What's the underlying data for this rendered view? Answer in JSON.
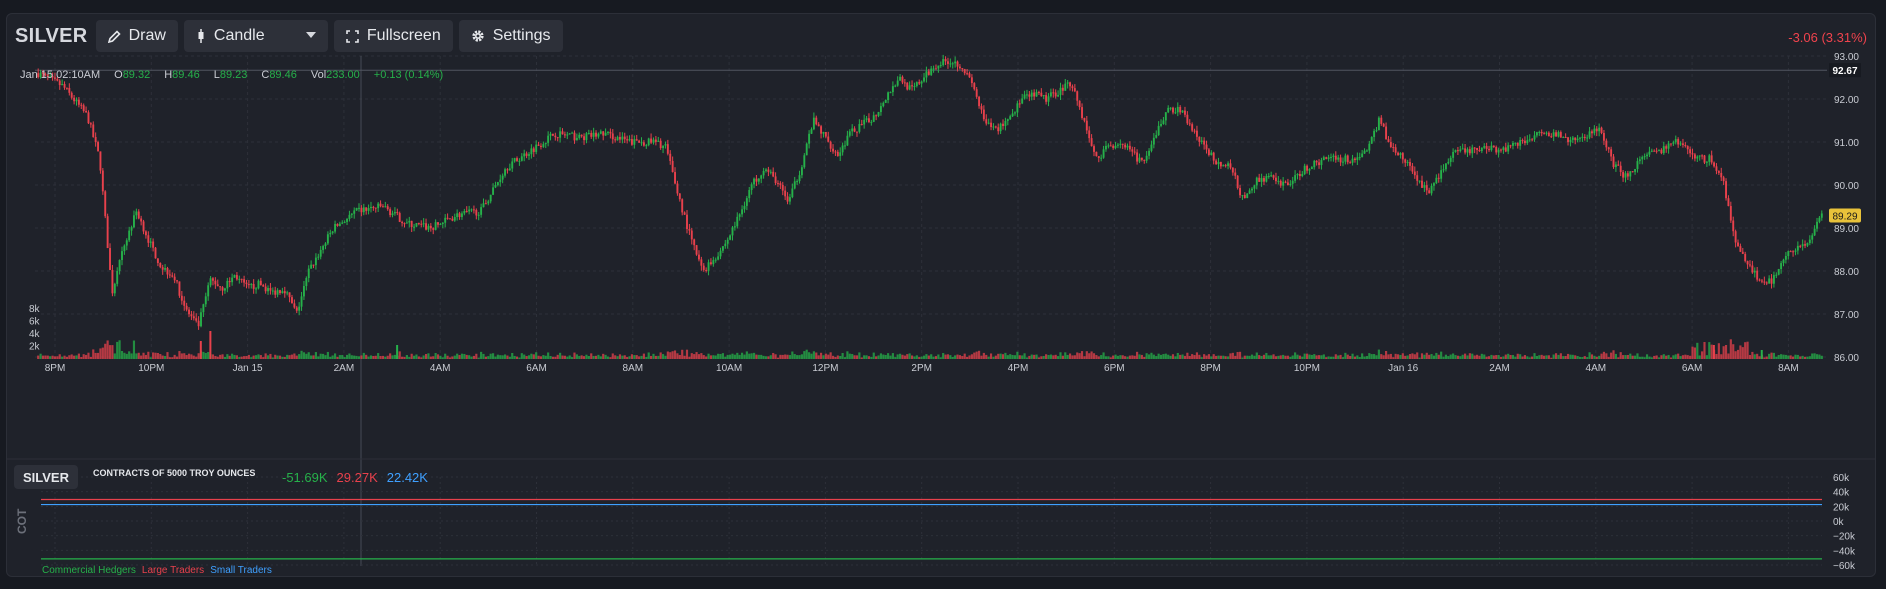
{
  "toolbar": {
    "symbol": "SILVER",
    "draw_label": "Draw",
    "chart_type_label": "Candle",
    "fullscreen_label": "Fullscreen",
    "settings_label": "Settings"
  },
  "change": "-3.06 (3.31%)",
  "ohlc": {
    "time": "Jan 15 02:10AM",
    "o_label": "O",
    "o": "89.32",
    "h_label": "H",
    "h": "89.46",
    "l_label": "L",
    "l": "89.23",
    "c_label": "C",
    "c": "89.46",
    "vol_label": "Vol",
    "vol": "233.00",
    "chg": "+0.13 (0.14%)"
  },
  "colors": {
    "up": "#26b14a",
    "down": "#e8414c",
    "small": "#3fa0ff",
    "bg": "#1f222a",
    "grid": "#2d3039"
  },
  "chart_data": [
    {
      "type": "candlestick",
      "y_ticks": [
        "93.00",
        "92.00",
        "91.00",
        "90.00",
        "89.00",
        "88.00",
        "87.00",
        "86.00"
      ],
      "ylim": [
        86.0,
        93.0
      ],
      "x_ticks": [
        "8PM",
        "10PM",
        "Jan 15",
        "2AM",
        "4AM",
        "6AM",
        "8AM",
        "10AM",
        "12PM",
        "2PM",
        "4PM",
        "6PM",
        "8PM",
        "10PM",
        "Jan 16",
        "2AM",
        "4AM",
        "6AM",
        "8AM"
      ],
      "price_path": [
        [
          0,
          92.6
        ],
        [
          2,
          92.3
        ],
        [
          4,
          91.6
        ],
        [
          5,
          90.6
        ],
        [
          6,
          87.5
        ],
        [
          7,
          88.6
        ],
        [
          8,
          89.4
        ],
        [
          9,
          88.7
        ],
        [
          10,
          88.1
        ],
        [
          11,
          87.9
        ],
        [
          12,
          87.1
        ],
        [
          13,
          86.7
        ],
        [
          14,
          87.8
        ],
        [
          15,
          87.6
        ],
        [
          16,
          87.9
        ],
        [
          17,
          87.6
        ],
        [
          18,
          87.7
        ],
        [
          19,
          87.5
        ],
        [
          20,
          87.6
        ],
        [
          21,
          87.0
        ],
        [
          22,
          88.0
        ],
        [
          24,
          89.0
        ],
        [
          26,
          89.4
        ],
        [
          28,
          89.5
        ],
        [
          30,
          89.1
        ],
        [
          32,
          89.0
        ],
        [
          34,
          89.3
        ],
        [
          36,
          89.4
        ],
        [
          38,
          90.4
        ],
        [
          40,
          90.8
        ],
        [
          42,
          91.2
        ],
        [
          44,
          91.1
        ],
        [
          46,
          91.2
        ],
        [
          48,
          91.0
        ],
        [
          50,
          91.0
        ],
        [
          51,
          90.9
        ],
        [
          52,
          89.8
        ],
        [
          53,
          88.8
        ],
        [
          54,
          88.0
        ],
        [
          55,
          88.3
        ],
        [
          56,
          88.7
        ],
        [
          57,
          89.3
        ],
        [
          58,
          90.0
        ],
        [
          59,
          90.4
        ],
        [
          60,
          90.1
        ],
        [
          61,
          89.6
        ],
        [
          62,
          90.4
        ],
        [
          63,
          91.5
        ],
        [
          64,
          91.1
        ],
        [
          65,
          90.7
        ],
        [
          66,
          91.2
        ],
        [
          67,
          91.4
        ],
        [
          68,
          91.6
        ],
        [
          69,
          92.1
        ],
        [
          70,
          92.5
        ],
        [
          71,
          92.2
        ],
        [
          72,
          92.5
        ],
        [
          73,
          92.8
        ],
        [
          74,
          92.9
        ],
        [
          75,
          92.8
        ],
        [
          76,
          92.3
        ],
        [
          77,
          91.4
        ],
        [
          78,
          91.3
        ],
        [
          79,
          91.6
        ],
        [
          80,
          92.0
        ],
        [
          81,
          92.1
        ],
        [
          82,
          92.0
        ],
        [
          83,
          92.2
        ],
        [
          84,
          92.4
        ],
        [
          85,
          91.5
        ],
        [
          86,
          90.6
        ],
        [
          87,
          90.9
        ],
        [
          88,
          91.0
        ],
        [
          89,
          90.7
        ],
        [
          90,
          90.5
        ],
        [
          91,
          91.3
        ],
        [
          92,
          91.8
        ],
        [
          93,
          91.7
        ],
        [
          94,
          91.2
        ],
        [
          95,
          90.8
        ],
        [
          96,
          90.5
        ],
        [
          97,
          90.4
        ],
        [
          98,
          89.6
        ],
        [
          99,
          90.1
        ],
        [
          100,
          90.2
        ],
        [
          101,
          90.0
        ],
        [
          102,
          90.1
        ],
        [
          103,
          90.4
        ],
        [
          104,
          90.5
        ],
        [
          105,
          90.7
        ],
        [
          106,
          90.6
        ],
        [
          107,
          90.6
        ],
        [
          108,
          90.8
        ],
        [
          109,
          91.5
        ],
        [
          110,
          90.9
        ],
        [
          111,
          90.6
        ],
        [
          112,
          90.2
        ],
        [
          113,
          89.8
        ],
        [
          114,
          90.3
        ],
        [
          115,
          90.7
        ],
        [
          116,
          90.8
        ],
        [
          117,
          90.8
        ],
        [
          118,
          90.9
        ],
        [
          119,
          90.8
        ],
        [
          120,
          91.0
        ],
        [
          121,
          91.0
        ],
        [
          122,
          91.3
        ],
        [
          123,
          91.2
        ],
        [
          124,
          91.1
        ],
        [
          125,
          91.0
        ],
        [
          126,
          91.2
        ],
        [
          127,
          91.3
        ],
        [
          128,
          90.5
        ],
        [
          129,
          90.2
        ],
        [
          130,
          90.5
        ],
        [
          131,
          90.7
        ],
        [
          132,
          90.8
        ],
        [
          133,
          91.0
        ],
        [
          134,
          90.9
        ],
        [
          135,
          90.6
        ],
        [
          136,
          90.6
        ],
        [
          137,
          90.1
        ],
        [
          138,
          88.6
        ],
        [
          139,
          88.2
        ],
        [
          140,
          87.7
        ],
        [
          141,
          87.8
        ],
        [
          142,
          88.4
        ],
        [
          143,
          88.5
        ],
        [
          144,
          88.7
        ],
        [
          145,
          89.3
        ]
      ],
      "volume_y_ticks": [
        "8k",
        "6k",
        "4k",
        "2k"
      ],
      "current_price_label": "92.67",
      "last_price_label": "89.29"
    },
    {
      "type": "line",
      "title": "CONTRACTS OF 5000 TROY OUNCES",
      "y_ticks": [
        "60k",
        "40k",
        "20k",
        "0k",
        "−20k",
        "−40k",
        "−60k"
      ],
      "ylim": [
        -60000,
        60000
      ],
      "series": [
        {
          "name": "Commercial Hedgers",
          "value_label": "-51.69K",
          "value": -51690,
          "color": "#26b14a"
        },
        {
          "name": "Large Traders",
          "value_label": "29.27K",
          "value": 29270,
          "color": "#e8414c"
        },
        {
          "name": "Small Traders",
          "value_label": "22.42K",
          "value": 22420,
          "color": "#3fa0ff"
        }
      ],
      "side_label": "COT",
      "symbol": "SILVER"
    }
  ]
}
